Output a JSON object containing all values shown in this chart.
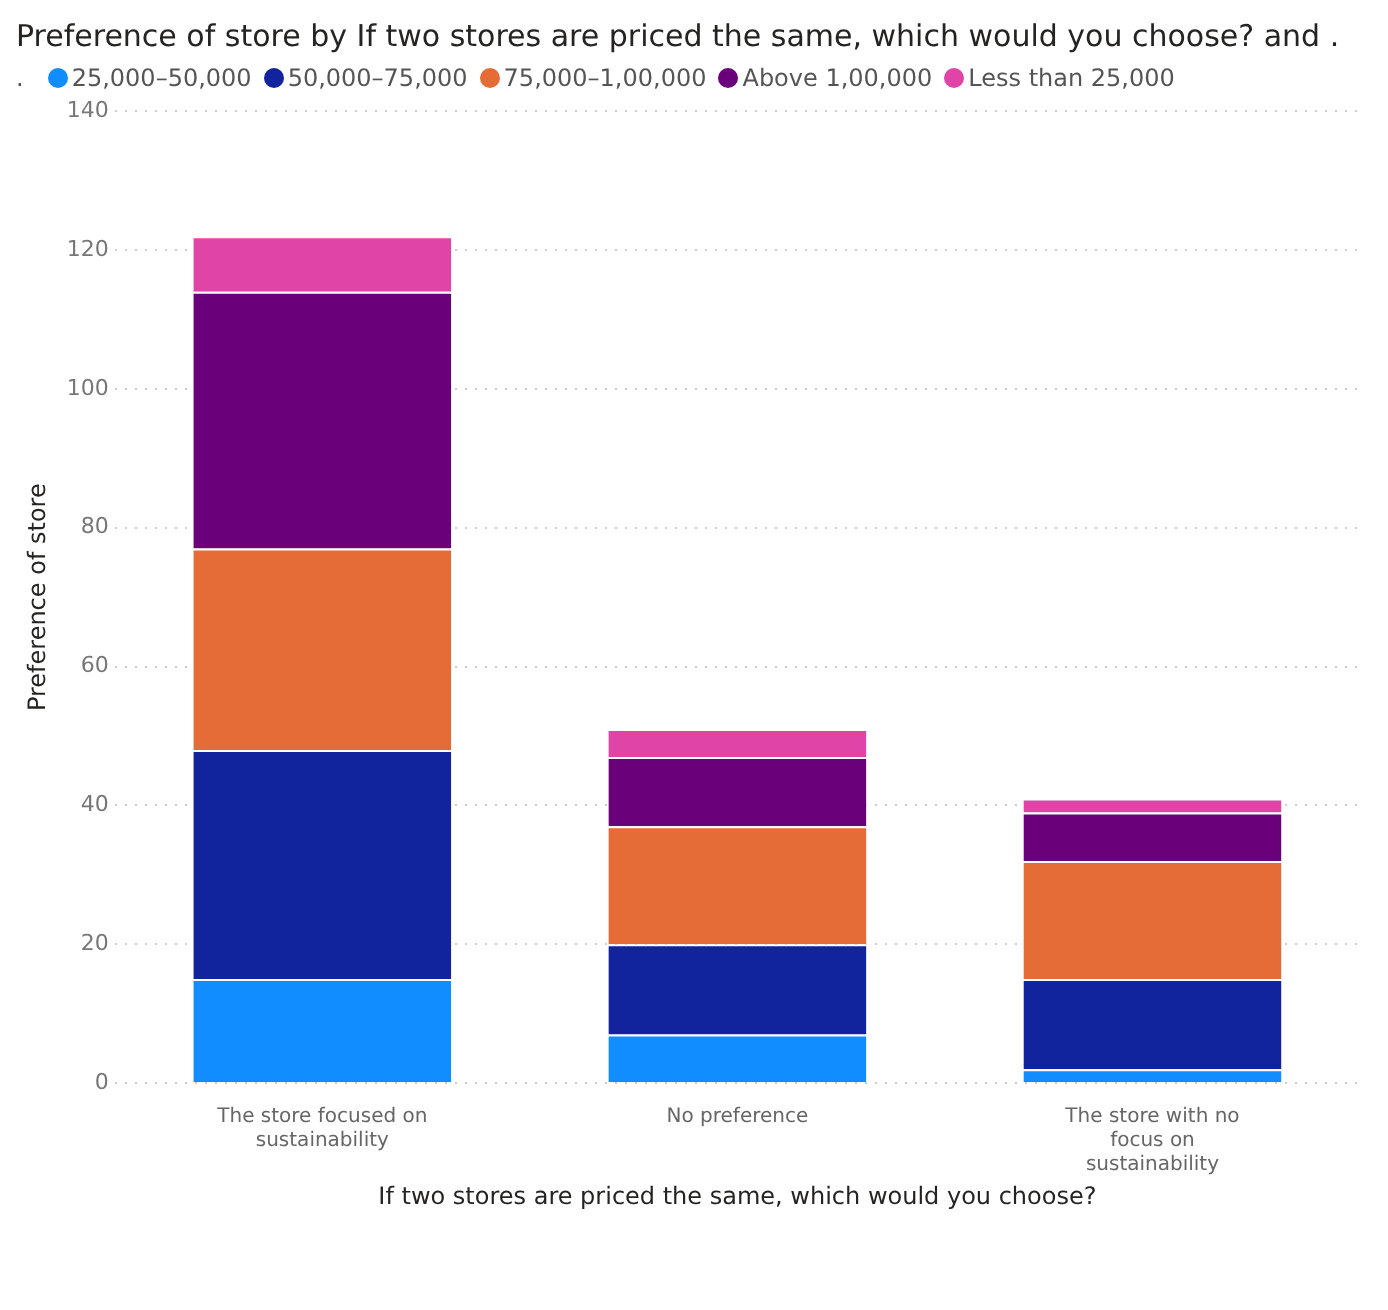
{
  "chart_data": {
    "type": "bar",
    "title": "Preference of store by If two stores are priced the same, which would you choose? and .",
    "xlabel": "If two stores are priced the same, which would you choose?",
    "ylabel": "Preference of store",
    "legend_title": ".",
    "legend": "top left",
    "stacked": true,
    "grid": "y",
    "categories": [
      "The store focused on sustainability",
      "No preference",
      "The store with no focus on sustainability"
    ],
    "ylim": [
      0,
      140
    ],
    "yticks": [
      0,
      20,
      40,
      60,
      80,
      100,
      120,
      140
    ],
    "series": [
      {
        "name": "25,000–50,000",
        "color": "#118dff",
        "values": [
          15,
          7,
          2
        ]
      },
      {
        "name": "50,000–75,000",
        "color": "#12239e",
        "values": [
          33,
          13,
          13
        ]
      },
      {
        "name": "75,000–1,00,000",
        "color": "#e66c37",
        "values": [
          29,
          17,
          17
        ]
      },
      {
        "name": "Above 1,00,000",
        "color": "#6b007b",
        "values": [
          37,
          10,
          7
        ]
      },
      {
        "name": "Less than 25,000",
        "color": "#e044a7",
        "values": [
          8,
          4,
          2
        ]
      }
    ]
  }
}
